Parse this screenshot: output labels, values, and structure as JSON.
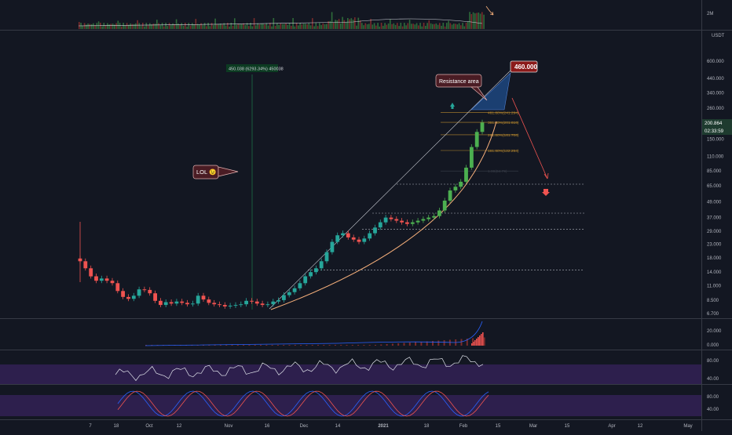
{
  "chart": {
    "scale_currency": "USDT",
    "volume_axis_label": "2M",
    "price_axis_labels": [
      "600.000",
      "440.000",
      "340.000",
      "260.000",
      "200.000",
      "150.000",
      "110.000",
      "85.000",
      "65.000",
      "49.000",
      "37.000",
      "29.000",
      "23.000",
      "18.000",
      "14.000",
      "11.000",
      "8.500",
      "6.700"
    ],
    "current_price": "200.864",
    "countdown": "02:33:59",
    "target_label": "460.000",
    "resistance_callout": "Resistance area",
    "lol_callout": "LOL 😉",
    "measure_label": "450.038 (6293.34%) 450038",
    "fib_labels": [
      "461.80%(241.294)",
      "361.80%(201.616)",
      "261.80%(161.706)",
      "161.80%(122.254)"
    ],
    "fib_faded_label": "1.00(84.79)",
    "osc1_labels": [
      "20.000",
      "0.000"
    ],
    "osc2_labels": [
      "80.00",
      "40.00"
    ],
    "osc3_labels": [
      "80.00",
      "40.00"
    ],
    "time_labels": [
      "7",
      "18",
      "Oct",
      "12",
      "Nov",
      "16",
      "Dec",
      "14",
      "2021",
      "18",
      "Feb",
      "15",
      "Mar",
      "15",
      "Apr",
      "12",
      "May"
    ],
    "colors": {
      "background": "#131722",
      "up": "#26a69a",
      "up_bright": "#4caf50",
      "down": "#ef5350",
      "grid": "#2a2e39",
      "fib": "#b9892e",
      "curve": "#f7b07b",
      "rsi_band": "#3b2a63",
      "macd_blue": "#2962ff"
    }
  },
  "chart_data": {
    "type": "candlestick",
    "axis_scale": "log",
    "ylim": [
      6.7,
      600
    ],
    "price_axis_ticks": [
      600,
      440,
      340,
      260,
      200,
      150,
      110,
      85,
      65,
      49,
      37,
      29,
      23,
      18,
      14,
      11,
      8.5,
      6.7
    ],
    "candle_closes": [
      17,
      15,
      13,
      12,
      12.5,
      12,
      11.5,
      10,
      9,
      8.7,
      9.2,
      10.3,
      10.2,
      9.6,
      8.4,
      7.8,
      8.2,
      8.0,
      8.3,
      8.1,
      7.9,
      8.0,
      9.2,
      8.6,
      8.1,
      7.9,
      7.8,
      7.6,
      7.7,
      7.8,
      7.9,
      8.4,
      8.3,
      8.0,
      7.8,
      7.9,
      8.3,
      8.5,
      9.3,
      9.8,
      10.5,
      11.5,
      13,
      14,
      15,
      17,
      20,
      24,
      27,
      28,
      26,
      25,
      24,
      25.5,
      28,
      31,
      34,
      37,
      36,
      35,
      34,
      33,
      34,
      35,
      36,
      37,
      38,
      42,
      50,
      60,
      64,
      70,
      90,
      130,
      170,
      201
    ],
    "horizontal_levels": [
      14.5,
      30,
      40,
      67
    ],
    "fib_levels": [
      241.294,
      201.616,
      161.706,
      122.254,
      84.79
    ],
    "target": 460,
    "current_price": 200.864
  }
}
